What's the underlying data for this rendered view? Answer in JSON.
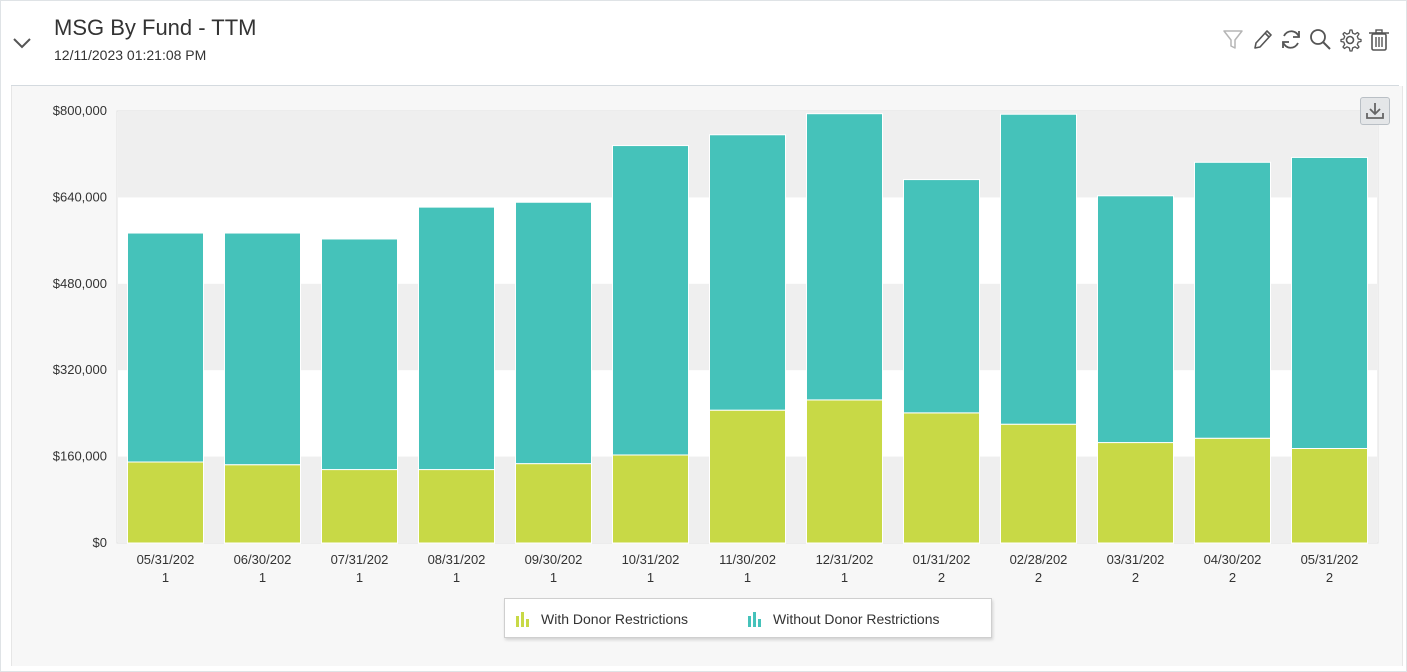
{
  "widget": {
    "title": "MSG By Fund - TTM",
    "timestamp": "12/11/2023 01:21:08 PM"
  },
  "toolbar": {
    "icons": [
      "filter-icon",
      "edit-icon",
      "refresh-icon",
      "search-icon",
      "settings-icon",
      "trash-icon"
    ]
  },
  "colors": {
    "with_donor": "#c8d946",
    "without_donor": "#45c2ba",
    "grid_band": "#efefef"
  },
  "chart_data": {
    "type": "bar",
    "stacked": true,
    "categories": [
      [
        "05/31/202",
        "1"
      ],
      [
        "06/30/202",
        "1"
      ],
      [
        "07/31/202",
        "1"
      ],
      [
        "08/31/202",
        "1"
      ],
      [
        "09/30/202",
        "1"
      ],
      [
        "10/31/202",
        "1"
      ],
      [
        "11/30/202",
        "1"
      ],
      [
        "12/31/202",
        "1"
      ],
      [
        "01/31/202",
        "2"
      ],
      [
        "02/28/202",
        "2"
      ],
      [
        "03/31/202",
        "2"
      ],
      [
        "04/30/202",
        "2"
      ],
      [
        "05/31/202",
        "2"
      ]
    ],
    "series": [
      {
        "name": "With Donor Restrictions",
        "values": [
          150000,
          145000,
          136000,
          136000,
          147000,
          163000,
          246000,
          265000,
          241000,
          220000,
          186000,
          194000,
          175000
        ]
      },
      {
        "name": "Without Donor Restrictions",
        "values": [
          424000,
          429000,
          427000,
          486000,
          484000,
          573000,
          510000,
          530000,
          432000,
          574000,
          457000,
          511000,
          539000
        ]
      }
    ],
    "ylim": [
      0,
      800000
    ],
    "yticks": [
      0,
      160000,
      320000,
      480000,
      640000,
      800000
    ],
    "ytick_labels": [
      "$0",
      "$160,000",
      "$320,000",
      "$480,000",
      "$640,000",
      "$800,000"
    ],
    "legend_position": "bottom-center",
    "grid": "alternating-bands"
  }
}
